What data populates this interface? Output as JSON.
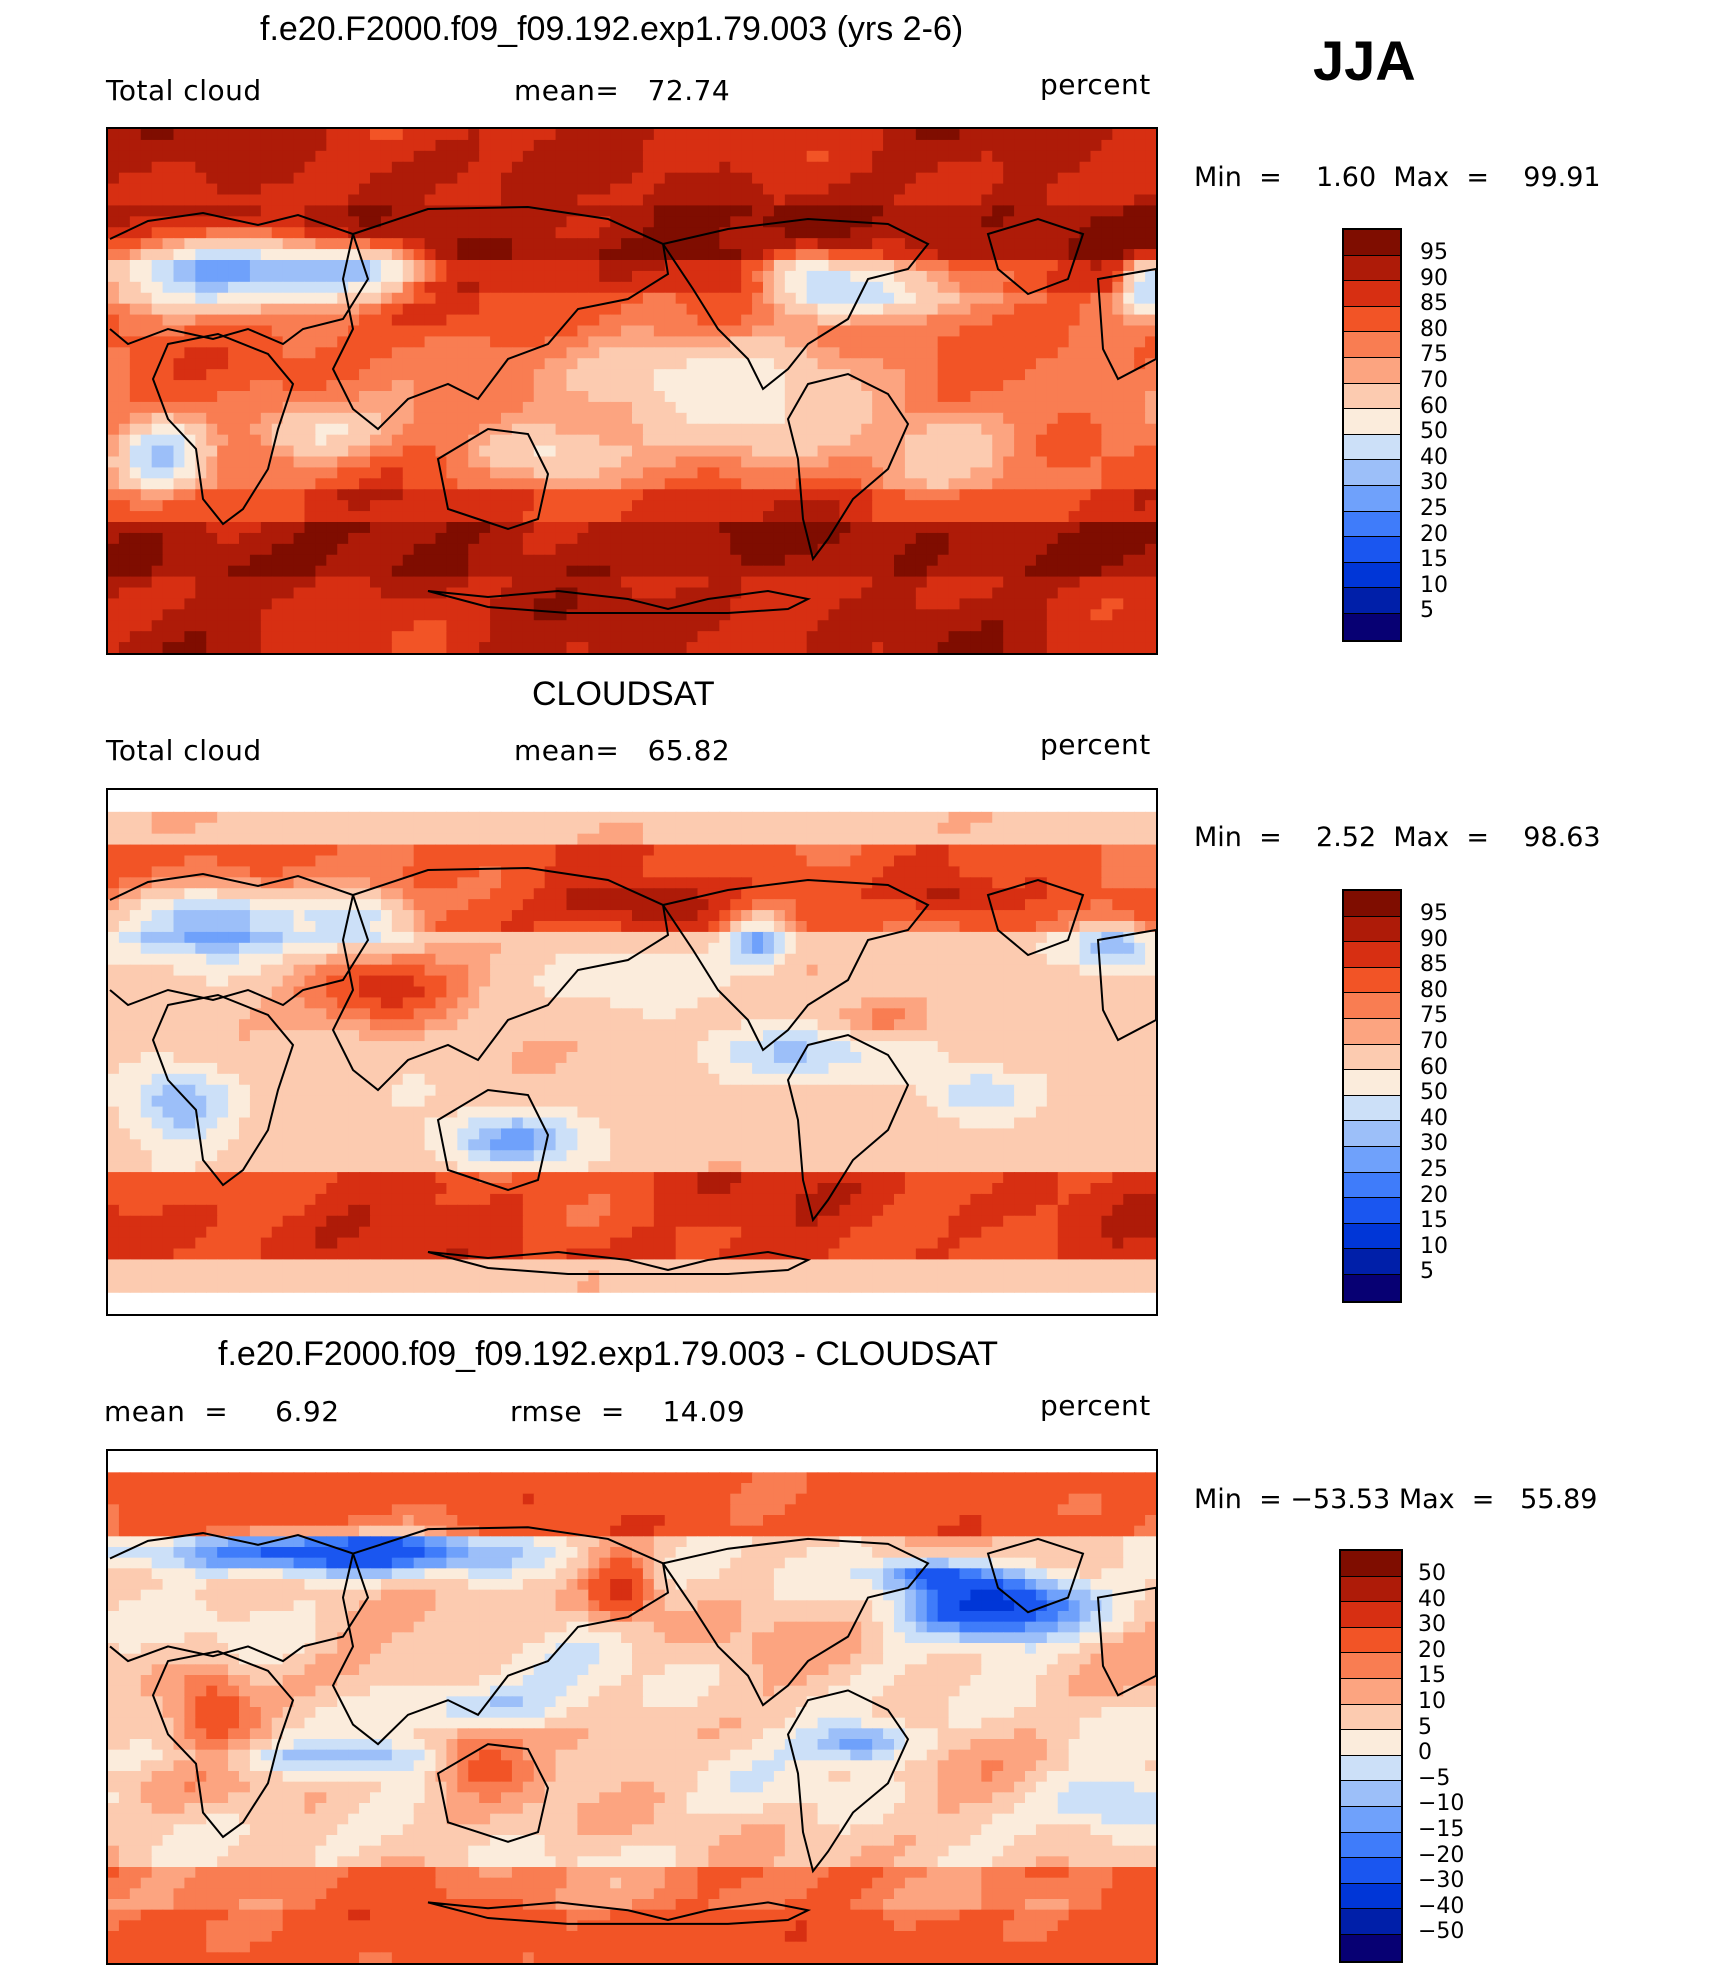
{
  "season": "JJA",
  "palette": {
    "abs": [
      "#070073",
      "#001fa9",
      "#0036d7",
      "#1a56f0",
      "#3f7cfa",
      "#6fa1fb",
      "#9cbff9",
      "#cce0f8",
      "#fbecdc",
      "#fccbb0",
      "#fca480",
      "#f97d52",
      "#f25426",
      "#d72f12",
      "#ae1b08",
      "#7f0d00"
    ],
    "diff": [
      "#070073",
      "#001fa9",
      "#0036d7",
      "#1a56f0",
      "#3f7cfa",
      "#6fa1fb",
      "#9cbff9",
      "#cce0f8",
      "#fbecdc",
      "#fccbb0",
      "#fca480",
      "#f97d52",
      "#f25426",
      "#d72f12",
      "#ae1b08",
      "#7f0d00"
    ]
  },
  "panels": [
    {
      "id": "model",
      "title": "f.e20.F2000.f09_f09.192.exp1.79.003 (yrs 2-6)",
      "left_label": "Total cloud",
      "mid_label": "mean=   72.74",
      "right_label": "percent",
      "min_label": "Min  =",
      "min_value": "1.60",
      "max_label": "Max  =",
      "max_value": "99.91",
      "levels": [
        "95",
        "90",
        "85",
        "80",
        "75",
        "70",
        "60",
        "50",
        "40",
        "30",
        "25",
        "20",
        "15",
        "10",
        "5"
      ]
    },
    {
      "id": "obs",
      "title": "CLOUDSAT",
      "left_label": "Total cloud",
      "mid_label": "mean=   65.82",
      "right_label": "percent",
      "min_label": "Min  =",
      "min_value": "2.52",
      "max_label": "Max  =",
      "max_value": "98.63",
      "levels": [
        "95",
        "90",
        "85",
        "80",
        "75",
        "70",
        "60",
        "50",
        "40",
        "30",
        "25",
        "20",
        "15",
        "10",
        "5"
      ]
    },
    {
      "id": "diff",
      "title": "f.e20.F2000.f09_f09.192.exp1.79.003 - CLOUDSAT",
      "left_label": "mean  =     6.92",
      "mid_label": "rmse  =    14.09",
      "right_label": "percent",
      "min_label": "Min  =",
      "min_value": "−53.53",
      "max_label": "Max  =",
      "max_value": "55.89",
      "levels": [
        "50",
        "40",
        "30",
        "20",
        "15",
        "10",
        "5",
        "0",
        "−5",
        "−10",
        "−15",
        "−20",
        "−30",
        "−40",
        "−50"
      ]
    }
  ]
}
